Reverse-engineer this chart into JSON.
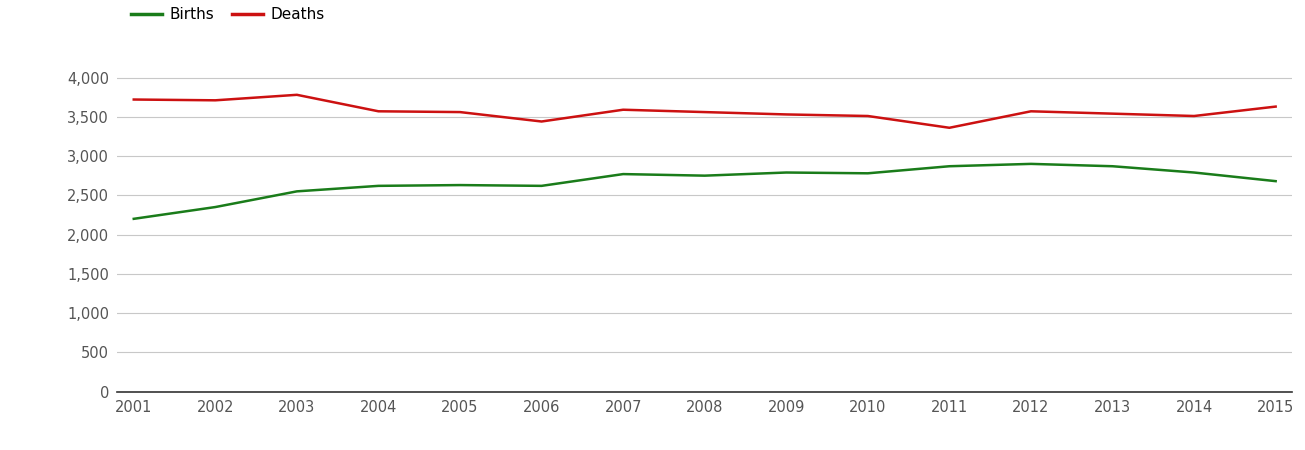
{
  "years": [
    2001,
    2002,
    2003,
    2004,
    2005,
    2006,
    2007,
    2008,
    2009,
    2010,
    2011,
    2012,
    2013,
    2014,
    2015
  ],
  "births": [
    2200,
    2350,
    2550,
    2620,
    2630,
    2620,
    2770,
    2750,
    2790,
    2780,
    2870,
    2900,
    2870,
    2790,
    2680
  ],
  "deaths": [
    3720,
    3710,
    3780,
    3570,
    3560,
    3440,
    3590,
    3560,
    3530,
    3510,
    3360,
    3570,
    3540,
    3510,
    3630
  ],
  "births_color": "#1a7c1a",
  "deaths_color": "#cc1111",
  "background_color": "#ffffff",
  "grid_color": "#c8c8c8",
  "ylim": [
    0,
    4300
  ],
  "yticks": [
    0,
    500,
    1000,
    1500,
    2000,
    2500,
    3000,
    3500,
    4000
  ],
  "legend_births": "Births",
  "legend_deaths": "Deaths",
  "line_width": 1.8,
  "tick_label_color": "#555555",
  "tick_fontsize": 10.5
}
